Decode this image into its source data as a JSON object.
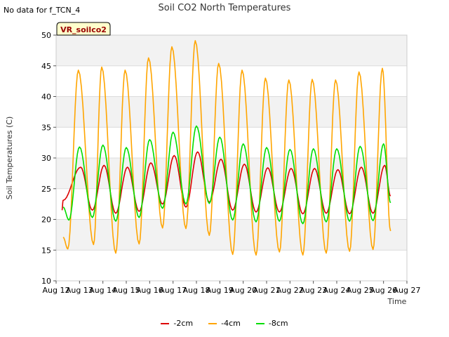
{
  "no_data_text": "No data for f_TCN_4",
  "chart_data": {
    "type": "line",
    "title": "Soil CO2 North Temperatures",
    "xlabel": "Time",
    "ylabel": "Soil Temperatures (C)",
    "ylim": [
      10,
      50
    ],
    "yticks": [
      10,
      15,
      20,
      25,
      30,
      35,
      40,
      45,
      50
    ],
    "xlim": [
      12,
      27
    ],
    "xticks": [
      "Aug 12",
      "Aug 13",
      "Aug 14",
      "Aug 15",
      "Aug 16",
      "Aug 17",
      "Aug 18",
      "Aug 19",
      "Aug 20",
      "Aug 21",
      "Aug 22",
      "Aug 23",
      "Aug 24",
      "Aug 25",
      "Aug 26",
      "Aug 27"
    ],
    "grid": true,
    "legend_position": "bottom",
    "annotation_label": "VR_soilco2",
    "series": [
      {
        "name": "-2cm",
        "color": "#dd0000",
        "min_times": [
          12.25,
          13.55,
          14.55,
          15.55,
          16.55,
          17.55,
          18.55,
          19.55,
          20.55,
          21.55,
          22.55,
          23.55,
          24.55,
          25.55
        ],
        "min_values": [
          21.5,
          21.5,
          21.0,
          21.3,
          22.5,
          22.0,
          22.8,
          21.5,
          21.2,
          21.2,
          20.9,
          21.0,
          20.9,
          21.0
        ],
        "max_times": [
          13.05,
          14.05,
          15.05,
          16.05,
          17.05,
          18.05,
          19.05,
          20.05,
          21.05,
          22.05,
          23.05,
          24.05,
          25.05,
          26.05
        ],
        "max_values": [
          28.5,
          28.8,
          28.5,
          29.2,
          30.4,
          31.0,
          29.8,
          29.0,
          28.4,
          28.3,
          28.3,
          28.1,
          28.5,
          28.8
        ],
        "start": [
          12.3,
          23.1
        ],
        "end": [
          26.3,
          23.8
        ]
      },
      {
        "name": "-4cm",
        "color": "#ffa500",
        "min_times": [
          12.5,
          13.6,
          14.55,
          15.55,
          16.55,
          17.55,
          18.55,
          19.55,
          20.55,
          21.55,
          22.55,
          23.55,
          24.55,
          25.55
        ],
        "min_values": [
          15.2,
          15.9,
          14.5,
          16.0,
          18.6,
          18.5,
          17.4,
          14.3,
          14.2,
          14.7,
          14.2,
          14.5,
          14.8,
          15.1
        ],
        "max_times": [
          12.95,
          13.95,
          14.95,
          15.95,
          16.95,
          17.95,
          18.95,
          19.95,
          20.95,
          21.95,
          22.95,
          23.95,
          24.95,
          25.95
        ],
        "max_values": [
          44.3,
          44.8,
          44.3,
          46.3,
          48.1,
          49.1,
          45.4,
          44.3,
          43.0,
          42.7,
          42.8,
          42.7,
          44.0,
          44.6
        ],
        "start": [
          12.3,
          17.1
        ],
        "end": [
          26.3,
          18.1
        ]
      },
      {
        "name": "-8cm",
        "color": "#00dd00",
        "min_times": [
          12.55,
          13.55,
          14.55,
          15.55,
          16.55,
          17.55,
          18.55,
          19.55,
          20.55,
          21.55,
          22.55,
          23.55,
          24.55,
          25.55
        ],
        "min_values": [
          19.9,
          20.3,
          19.7,
          20.3,
          21.8,
          22.5,
          22.6,
          19.9,
          19.6,
          19.7,
          19.3,
          19.6,
          19.7,
          19.8
        ],
        "max_times": [
          13.0,
          14.0,
          15.0,
          16.0,
          17.0,
          18.0,
          19.0,
          20.0,
          21.0,
          22.0,
          23.0,
          24.0,
          25.0,
          26.0
        ],
        "max_values": [
          31.8,
          32.1,
          31.7,
          33.0,
          34.2,
          35.2,
          33.4,
          32.3,
          31.7,
          31.4,
          31.5,
          31.5,
          31.9,
          32.3
        ],
        "start": [
          12.3,
          22.0
        ],
        "end": [
          26.3,
          22.7
        ]
      }
    ]
  }
}
